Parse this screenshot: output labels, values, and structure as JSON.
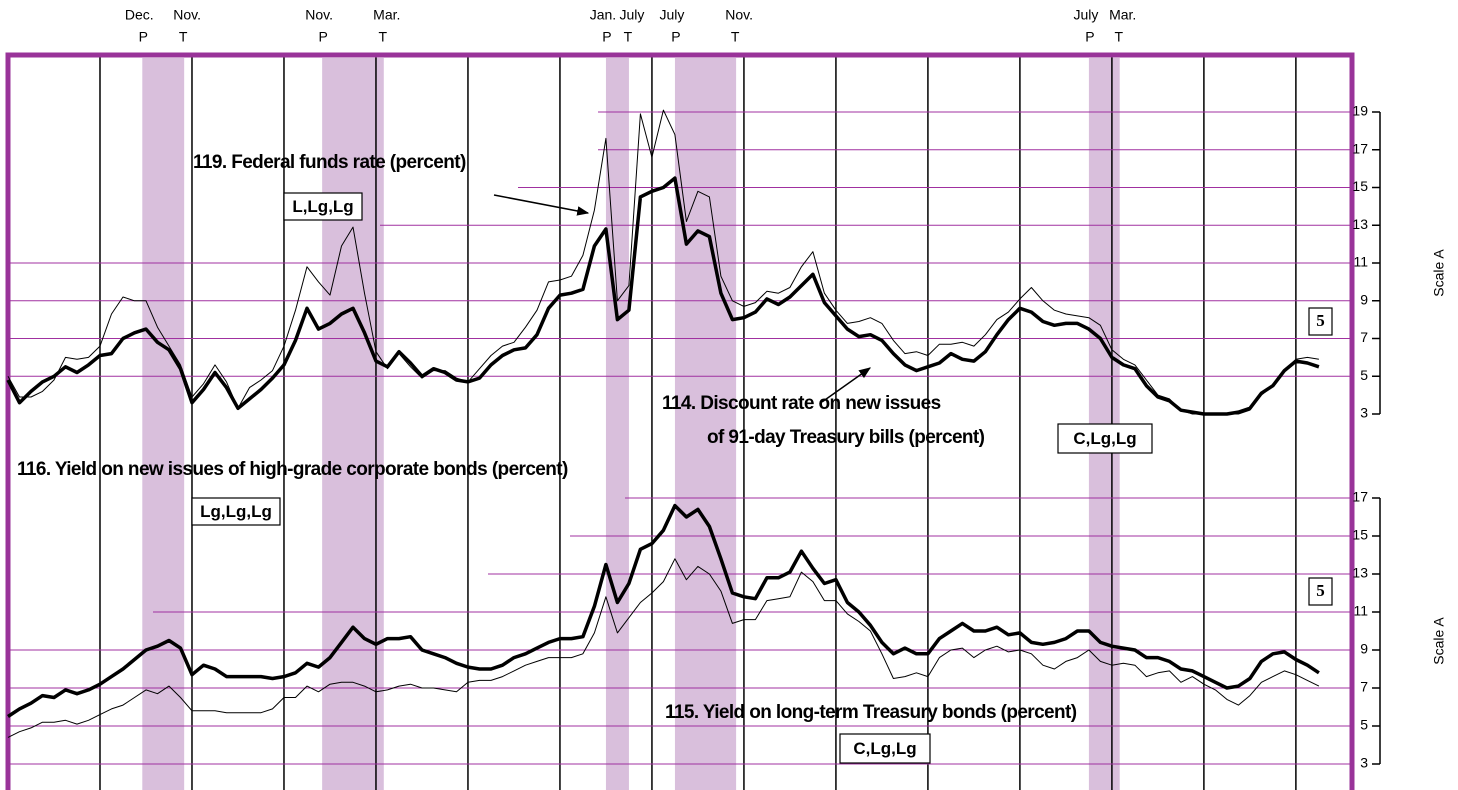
{
  "chart_data": {
    "type": "line",
    "xlim": [
      1967,
      1996.22
    ],
    "xgrid": [
      1969,
      1971,
      1973,
      1975,
      1977,
      1979,
      1981,
      1983,
      1985,
      1987,
      1989,
      1991,
      1993,
      1995
    ],
    "recessions": [
      {
        "peak_month": "Dec.",
        "trough_month": "Nov.",
        "peak_label": "P",
        "trough_label": "T",
        "start": 1969.92,
        "end": 1970.83
      },
      {
        "peak_month": "Nov.",
        "trough_month": "Mar.",
        "peak_label": "P",
        "trough_label": "T",
        "start": 1973.83,
        "end": 1975.17
      },
      {
        "peak_month": "Jan.",
        "trough_month": "July",
        "peak_label": "P",
        "trough_label": "T",
        "start": 1980.0,
        "end": 1980.5
      },
      {
        "peak_month": "July",
        "trough_month": "Nov.",
        "peak_label": "P",
        "trough_label": "T",
        "start": 1981.5,
        "end": 1982.83
      },
      {
        "peak_month": "July",
        "trough_month": "Mar.",
        "peak_label": "P",
        "trough_label": "T",
        "start": 1990.5,
        "end": 1991.17
      }
    ],
    "x": [
      1967,
      1967.25,
      1967.5,
      1967.75,
      1968,
      1968.25,
      1968.5,
      1968.75,
      1969,
      1969.25,
      1969.5,
      1969.75,
      1970,
      1970.25,
      1970.5,
      1970.75,
      1971,
      1971.25,
      1971.5,
      1971.75,
      1972,
      1972.25,
      1972.5,
      1972.75,
      1973,
      1973.25,
      1973.5,
      1973.75,
      1974,
      1974.25,
      1974.5,
      1974.75,
      1975,
      1975.25,
      1975.5,
      1975.75,
      1976,
      1976.25,
      1976.5,
      1976.75,
      1977,
      1977.25,
      1977.5,
      1977.75,
      1978,
      1978.25,
      1978.5,
      1978.75,
      1979,
      1979.25,
      1979.5,
      1979.75,
      1980,
      1980.25,
      1980.5,
      1980.75,
      1981,
      1981.25,
      1981.5,
      1981.75,
      1982,
      1982.25,
      1982.5,
      1982.75,
      1983,
      1983.25,
      1983.5,
      1983.75,
      1984,
      1984.25,
      1984.5,
      1984.75,
      1985,
      1985.25,
      1985.5,
      1985.75,
      1986,
      1986.25,
      1986.5,
      1986.75,
      1987,
      1987.25,
      1987.5,
      1987.75,
      1988,
      1988.25,
      1988.5,
      1988.75,
      1989,
      1989.25,
      1989.5,
      1989.75,
      1990,
      1990.25,
      1990.5,
      1990.75,
      1991,
      1991.25,
      1991.5,
      1991.75,
      1992,
      1992.25,
      1992.5,
      1992.75,
      1993,
      1993.25,
      1993.5,
      1993.75,
      1994,
      1994.25,
      1994.5,
      1994.75,
      1995,
      1995.25,
      1995.5
    ],
    "panels": [
      {
        "ylim": [
          3,
          19
        ],
        "yticks": [
          3,
          5,
          7,
          9,
          11,
          13,
          15,
          17,
          19
        ],
        "scale_label": "Scale A",
        "box_label": "5",
        "series": [
          {
            "label": [
              "119. Federal funds rate (percent)"
            ],
            "code": "L,Lg,Lg",
            "color": "#000000",
            "width": 1,
            "values": [
              5.0,
              3.9,
              3.9,
              4.2,
              4.8,
              6.0,
              5.9,
              6.0,
              6.6,
              8.3,
              9.2,
              9.0,
              9.0,
              7.6,
              6.6,
              5.6,
              3.9,
              4.6,
              5.6,
              4.7,
              3.3,
              4.4,
              4.8,
              5.3,
              6.6,
              8.5,
              10.8,
              10.0,
              9.3,
              11.9,
              12.9,
              9.4,
              6.3,
              5.4,
              6.2,
              5.5,
              4.9,
              5.3,
              5.3,
              4.9,
              4.7,
              5.4,
              6.1,
              6.6,
              6.8,
              7.6,
              8.5,
              10.0,
              10.1,
              10.3,
              11.4,
              13.8,
              17.6,
              9.0,
              9.8,
              18.9,
              16.6,
              19.1,
              17.8,
              13.2,
              14.8,
              14.5,
              10.3,
              9.0,
              8.7,
              8.9,
              9.5,
              9.4,
              9.7,
              10.8,
              11.6,
              9.4,
              8.5,
              7.8,
              7.9,
              8.1,
              7.8,
              6.9,
              6.2,
              6.3,
              6.1,
              6.7,
              6.7,
              6.8,
              6.6,
              7.2,
              8.0,
              8.4,
              9.1,
              9.7,
              9.0,
              8.5,
              8.3,
              8.2,
              8.1,
              7.7,
              6.4,
              5.9,
              5.6,
              4.8,
              4.0,
              3.8,
              3.2,
              3.0,
              3.0,
              3.0,
              3.0,
              3.0,
              3.2,
              4.0,
              4.5,
              5.3,
              5.9,
              6.0,
              5.9
            ]
          },
          {
            "label": [
              "114. Discount rate on new issues",
              "of 91-day Treasury bills (percent)"
            ],
            "code": "C,Lg,Lg",
            "color": "#000000",
            "width": 3.5,
            "values": [
              4.8,
              3.6,
              4.2,
              4.7,
              5.0,
              5.5,
              5.2,
              5.6,
              6.1,
              6.2,
              7.0,
              7.3,
              7.5,
              6.8,
              6.4,
              5.4,
              3.6,
              4.3,
              5.2,
              4.4,
              3.3,
              3.8,
              4.3,
              4.9,
              5.6,
              6.9,
              8.6,
              7.5,
              7.8,
              8.3,
              8.6,
              7.3,
              5.8,
              5.5,
              6.3,
              5.7,
              5.0,
              5.4,
              5.2,
              4.8,
              4.7,
              4.9,
              5.6,
              6.1,
              6.4,
              6.5,
              7.2,
              8.6,
              9.3,
              9.4,
              9.6,
              11.9,
              12.8,
              8.0,
              8.5,
              14.5,
              14.8,
              15.0,
              15.5,
              12.0,
              12.7,
              12.4,
              9.4,
              8.0,
              8.1,
              8.4,
              9.1,
              8.8,
              9.2,
              9.8,
              10.4,
              8.9,
              8.2,
              7.5,
              7.1,
              7.2,
              6.9,
              6.2,
              5.6,
              5.3,
              5.5,
              5.7,
              6.2,
              5.9,
              5.8,
              6.3,
              7.2,
              8.0,
              8.6,
              8.4,
              7.9,
              7.7,
              7.8,
              7.8,
              7.5,
              7.0,
              6.0,
              5.6,
              5.4,
              4.5,
              3.9,
              3.7,
              3.2,
              3.1,
              3.0,
              3.0,
              3.0,
              3.1,
              3.3,
              4.1,
              4.5,
              5.3,
              5.8,
              5.7,
              5.5
            ]
          }
        ]
      },
      {
        "ylim": [
          3,
          17
        ],
        "yticks": [
          3,
          5,
          7,
          9,
          11,
          13,
          15,
          17
        ],
        "scale_label": "Scale A",
        "box_label": "5",
        "series": [
          {
            "label": [
              "116. Yield on new issues of high-grade corporate bonds (percent)"
            ],
            "code": "Lg,Lg,Lg",
            "color": "#000000",
            "width": 3.5,
            "values": [
              5.5,
              5.9,
              6.2,
              6.6,
              6.5,
              6.9,
              6.7,
              6.9,
              7.2,
              7.6,
              8.0,
              8.5,
              9.0,
              9.2,
              9.5,
              9.1,
              7.7,
              8.2,
              8.0,
              7.6,
              7.6,
              7.6,
              7.6,
              7.5,
              7.6,
              7.8,
              8.3,
              8.1,
              8.6,
              9.4,
              10.2,
              9.6,
              9.3,
              9.6,
              9.6,
              9.7,
              9.0,
              8.8,
              8.6,
              8.3,
              8.1,
              8.0,
              8.0,
              8.2,
              8.6,
              8.8,
              9.1,
              9.4,
              9.6,
              9.6,
              9.7,
              11.3,
              13.5,
              11.5,
              12.5,
              14.3,
              14.6,
              15.3,
              16.6,
              16.0,
              16.4,
              15.5,
              13.8,
              12.0,
              11.8,
              11.7,
              12.8,
              12.8,
              13.1,
              14.2,
              13.3,
              12.5,
              12.7,
              11.5,
              11.0,
              10.3,
              9.4,
              8.8,
              9.1,
              8.8,
              8.8,
              9.6,
              10.0,
              10.4,
              10.0,
              10.0,
              10.2,
              9.8,
              9.9,
              9.4,
              9.3,
              9.4,
              9.6,
              10.0,
              10.0,
              9.4,
              9.2,
              9.1,
              9.0,
              8.6,
              8.6,
              8.4,
              8.0,
              7.9,
              7.6,
              7.3,
              7.0,
              7.1,
              7.5,
              8.4,
              8.8,
              8.9,
              8.5,
              8.2,
              7.8
            ]
          },
          {
            "label": [
              "115. Yield on long-term Treasury bonds (percent)"
            ],
            "code": "C,Lg,Lg",
            "color": "#000000",
            "width": 1,
            "values": [
              4.4,
              4.7,
              4.9,
              5.2,
              5.2,
              5.3,
              5.1,
              5.3,
              5.6,
              5.9,
              6.1,
              6.5,
              6.9,
              6.7,
              7.1,
              6.5,
              5.8,
              5.8,
              5.8,
              5.7,
              5.7,
              5.7,
              5.7,
              5.9,
              6.5,
              6.5,
              7.1,
              6.8,
              7.2,
              7.3,
              7.3,
              7.1,
              6.8,
              6.9,
              7.1,
              7.2,
              7.0,
              7.0,
              6.9,
              6.8,
              7.3,
              7.4,
              7.4,
              7.6,
              7.9,
              8.2,
              8.4,
              8.6,
              8.6,
              8.6,
              8.8,
              9.9,
              11.8,
              9.9,
              10.7,
              11.5,
              12.0,
              12.6,
              13.8,
              12.7,
              13.4,
              13.0,
              12.1,
              10.4,
              10.6,
              10.6,
              11.6,
              11.7,
              11.8,
              13.1,
              12.6,
              11.6,
              11.6,
              10.9,
              10.5,
              10.0,
              8.8,
              7.5,
              7.6,
              7.8,
              7.6,
              8.6,
              9.0,
              9.1,
              8.6,
              9.0,
              9.2,
              8.9,
              9.0,
              8.8,
              8.2,
              8.0,
              8.4,
              8.6,
              9.0,
              8.4,
              8.2,
              8.3,
              8.2,
              7.6,
              7.8,
              7.9,
              7.3,
              7.6,
              7.2,
              6.9,
              6.4,
              6.1,
              6.6,
              7.3,
              7.6,
              7.9,
              7.7,
              7.4,
              7.1
            ]
          }
        ]
      }
    ]
  }
}
